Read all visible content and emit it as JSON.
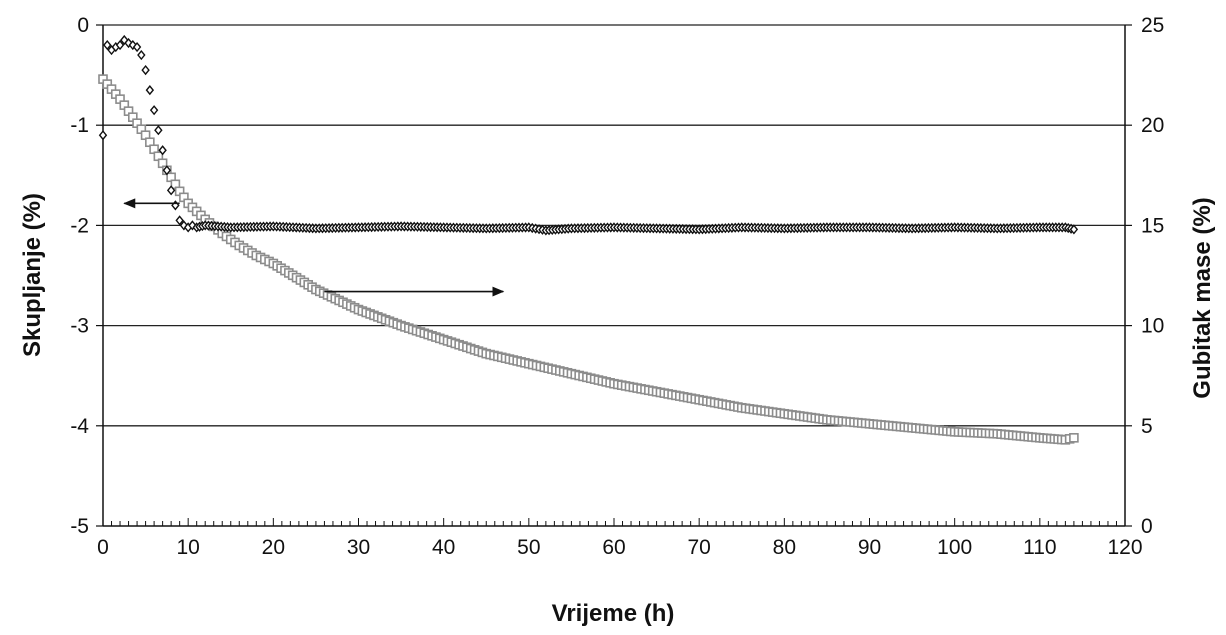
{
  "chart_data": {
    "type": "scatter",
    "title": "",
    "xlabel": "Vrijeme (h)",
    "ylabel": "Skupljanje (%)",
    "y2label": "Gubitak mase (%)",
    "xlim": [
      0,
      120
    ],
    "ylim": [
      -5,
      0
    ],
    "y2lim": [
      0,
      25
    ],
    "x_ticks": [
      0,
      10,
      20,
      30,
      40,
      50,
      60,
      70,
      80,
      90,
      100,
      110,
      120
    ],
    "y_ticks": [
      0,
      -1,
      -2,
      -3,
      -4,
      -5
    ],
    "y2_ticks": [
      25,
      20,
      15,
      10,
      5,
      0
    ],
    "grid": "horizontal",
    "legend": "none",
    "series": [
      {
        "axis": "left",
        "marker": "diamond",
        "color": "#111111",
        "x": [
          0,
          0.5,
          1,
          1.5,
          2,
          2.5,
          3,
          3.5,
          4,
          4.5,
          5,
          5.5,
          6,
          6.5,
          7,
          7.5,
          8,
          8.5,
          9,
          9.5,
          10,
          10.5,
          11,
          12,
          15,
          20,
          25,
          30,
          35,
          40,
          45,
          50,
          52,
          55,
          60,
          65,
          70,
          75,
          80,
          85,
          90,
          95,
          100,
          105,
          110,
          113,
          114
        ],
        "values": [
          -1.1,
          -0.2,
          -0.25,
          -0.22,
          -0.2,
          -0.15,
          -0.18,
          -0.2,
          -0.22,
          -0.3,
          -0.45,
          -0.65,
          -0.85,
          -1.05,
          -1.25,
          -1.45,
          -1.65,
          -1.8,
          -1.95,
          -2.0,
          -2.02,
          -2.0,
          -2.02,
          -2.0,
          -2.02,
          -2.01,
          -2.03,
          -2.02,
          -2.01,
          -2.02,
          -2.03,
          -2.02,
          -2.05,
          -2.03,
          -2.02,
          -2.03,
          -2.04,
          -2.02,
          -2.03,
          -2.02,
          -2.02,
          -2.03,
          -2.02,
          -2.03,
          -2.02,
          -2.02,
          -2.04
        ]
      },
      {
        "axis": "right",
        "marker": "square",
        "color": "#8c8c8c",
        "x": [
          0,
          1,
          2,
          3,
          4,
          5,
          6,
          7,
          8,
          9,
          10,
          12,
          14,
          16,
          18,
          20,
          25,
          30,
          35,
          40,
          45,
          50,
          55,
          60,
          65,
          70,
          75,
          80,
          85,
          90,
          95,
          100,
          105,
          110,
          113,
          114
        ],
        "values": [
          22.3,
          21.8,
          21.3,
          20.7,
          20.1,
          19.5,
          18.8,
          18.1,
          17.4,
          16.7,
          16.1,
          15.3,
          14.6,
          14.0,
          13.5,
          13.1,
          11.8,
          10.8,
          10.0,
          9.3,
          8.6,
          8.1,
          7.6,
          7.1,
          6.7,
          6.3,
          5.9,
          5.6,
          5.3,
          5.1,
          4.9,
          4.7,
          4.6,
          4.4,
          4.3,
          4.4
        ]
      }
    ],
    "annotations": [
      {
        "type": "arrow",
        "direction": "left",
        "points_to": "left-axis",
        "from": {
          "x": 9,
          "y": -1.78
        },
        "to": {
          "x": 2.5,
          "y": -1.78
        }
      },
      {
        "type": "arrow",
        "direction": "right",
        "points_to": "right-axis",
        "from": {
          "x": 26,
          "y": 11.7
        },
        "to": {
          "x": 47,
          "y": 11.7
        }
      }
    ]
  }
}
